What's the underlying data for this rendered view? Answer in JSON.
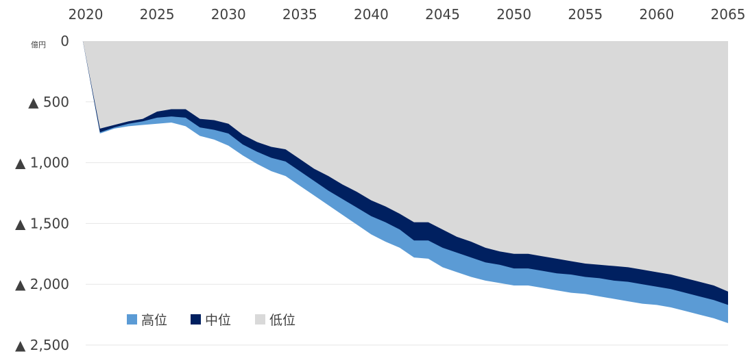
{
  "chart_data": {
    "type": "area",
    "title": "",
    "xlabel": "",
    "ylabel": "",
    "y_unit_label": "億円",
    "x_axis_position": "top",
    "xlim": [
      2020,
      2065
    ],
    "ylim": [
      -2500,
      0
    ],
    "x_ticks": [
      2020,
      2025,
      2030,
      2035,
      2040,
      2045,
      2050,
      2055,
      2060,
      2065
    ],
    "x_tick_labels": [
      "2020",
      "2025",
      "2030",
      "2035",
      "2040",
      "2045",
      "2050",
      "2055",
      "2060",
      "2065"
    ],
    "y_ticks": [
      0,
      -500,
      -1000,
      -1500,
      -2000,
      -2500
    ],
    "y_tick_labels": [
      "0",
      "▲ 500",
      "▲ 1,000",
      "▲ 1,500",
      "▲ 2,000",
      "▲ 2,500"
    ],
    "grid": true,
    "legend_position": "bottom-left",
    "x": [
      2019.8,
      2021,
      2022,
      2023,
      2024,
      2025,
      2026,
      2027,
      2028,
      2029,
      2030,
      2031,
      2032,
      2033,
      2034,
      2035,
      2036,
      2037,
      2038,
      2039,
      2040,
      2041,
      2042,
      2043,
      2044,
      2045,
      2046,
      2047,
      2048,
      2049,
      2050,
      2051,
      2052,
      2053,
      2054,
      2055,
      2056,
      2057,
      2058,
      2059,
      2060,
      2061,
      2062,
      2063,
      2064,
      2065
    ],
    "series": [
      {
        "name": "低位",
        "color": "#d9d9d9",
        "values": [
          0,
          -720,
          -690,
          -660,
          -640,
          -580,
          -560,
          -560,
          -640,
          -650,
          -680,
          -770,
          -830,
          -870,
          -890,
          -970,
          -1050,
          -1110,
          -1180,
          -1240,
          -1310,
          -1360,
          -1420,
          -1490,
          -1490,
          -1550,
          -1610,
          -1650,
          -1700,
          -1730,
          -1750,
          -1750,
          -1770,
          -1790,
          -1810,
          -1830,
          -1840,
          -1850,
          -1860,
          -1880,
          -1900,
          -1920,
          -1950,
          -1980,
          -2010,
          -2060
        ]
      },
      {
        "name": "中位",
        "color": "#002060",
        "values": [
          0,
          -750,
          -710,
          -680,
          -660,
          -630,
          -620,
          -630,
          -710,
          -730,
          -760,
          -850,
          -910,
          -960,
          -990,
          -1070,
          -1150,
          -1230,
          -1300,
          -1370,
          -1440,
          -1490,
          -1550,
          -1640,
          -1640,
          -1700,
          -1740,
          -1780,
          -1820,
          -1840,
          -1870,
          -1870,
          -1890,
          -1910,
          -1920,
          -1940,
          -1950,
          -1970,
          -1980,
          -2000,
          -2020,
          -2040,
          -2070,
          -2100,
          -2130,
          -2170
        ]
      },
      {
        "name": "高位",
        "color": "#5b9bd5",
        "values": [
          0,
          -760,
          -720,
          -700,
          -690,
          -680,
          -670,
          -700,
          -780,
          -810,
          -860,
          -940,
          -1010,
          -1070,
          -1110,
          -1190,
          -1270,
          -1350,
          -1430,
          -1510,
          -1590,
          -1650,
          -1700,
          -1780,
          -1790,
          -1860,
          -1900,
          -1940,
          -1970,
          -1990,
          -2010,
          -2010,
          -2030,
          -2050,
          -2070,
          -2080,
          -2100,
          -2120,
          -2140,
          -2160,
          -2170,
          -2190,
          -2220,
          -2250,
          -2280,
          -2320
        ]
      }
    ],
    "legend": [
      {
        "label": "高位",
        "color": "#5b9bd5"
      },
      {
        "label": "中位",
        "color": "#002060"
      },
      {
        "label": "低位",
        "color": "#d9d9d9"
      }
    ]
  }
}
